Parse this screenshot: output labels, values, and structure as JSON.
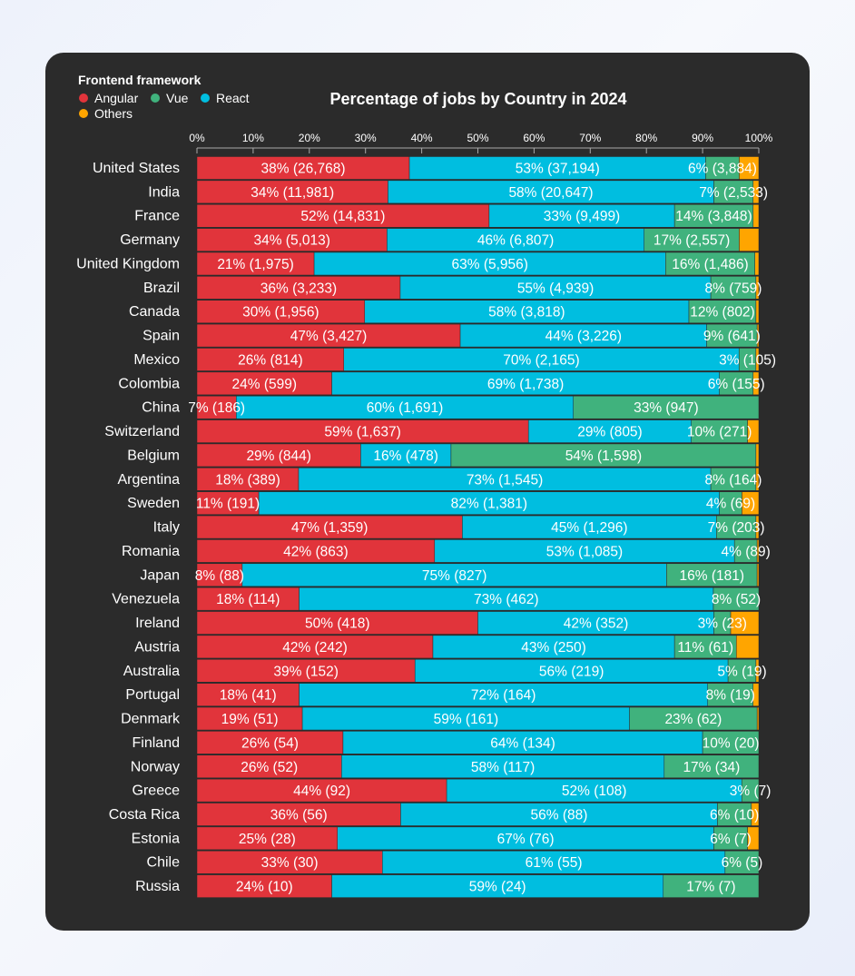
{
  "chart_data": {
    "type": "bar",
    "orientation": "horizontal",
    "stacked": "percent",
    "title": "Percentage of jobs by Country in 2024",
    "legend": {
      "title": "Frontend framework",
      "placement": "top-left"
    },
    "xlim": [
      0,
      100
    ],
    "x_ticks": [
      "0%",
      "10%",
      "20%",
      "30%",
      "40%",
      "50%",
      "60%",
      "70%",
      "80%",
      "90%",
      "100%"
    ],
    "grid": false,
    "colors": {
      "Angular": "#e1343b",
      "Vue": "#40b27d",
      "React": "#00bee0",
      "Others": "#ffa500"
    },
    "series_order": [
      "Angular",
      "React",
      "Vue",
      "Others"
    ],
    "legend_order": [
      "Angular",
      "Vue",
      "React",
      "Others"
    ],
    "columns": [
      "country",
      "angular_pct",
      "angular_jobs",
      "react_pct",
      "react_jobs",
      "vue_pct",
      "vue_jobs",
      "others_pct_estimated"
    ],
    "rows": [
      [
        "United States",
        38,
        26768,
        53,
        37194,
        6,
        3884,
        3.5
      ],
      [
        "India",
        34,
        11981,
        58,
        20647,
        7,
        2533,
        1
      ],
      [
        "France",
        52,
        14831,
        33,
        9499,
        14,
        3848,
        1
      ],
      [
        "Germany",
        34,
        5013,
        46,
        6807,
        17,
        2557,
        3.5
      ],
      [
        "United Kingdom",
        21,
        1975,
        63,
        5956,
        16,
        1486,
        0.7
      ],
      [
        "Brazil",
        36,
        3233,
        55,
        4939,
        8,
        759,
        0.5
      ],
      [
        "Canada",
        30,
        1956,
        58,
        3818,
        12,
        802,
        0.5
      ],
      [
        "Spain",
        47,
        3427,
        44,
        3226,
        9,
        641,
        0.3
      ],
      [
        "Mexico",
        26,
        814,
        70,
        2165,
        3,
        105,
        0.5
      ],
      [
        "Colombia",
        24,
        599,
        69,
        1738,
        6,
        155,
        1
      ],
      [
        "China",
        7,
        186,
        60,
        1691,
        33,
        947,
        0
      ],
      [
        "Switzerland",
        59,
        1637,
        29,
        805,
        10,
        271,
        2
      ],
      [
        "Belgium",
        29,
        844,
        16,
        478,
        54,
        1598,
        0.5
      ],
      [
        "Argentina",
        18,
        389,
        73,
        1545,
        8,
        164,
        0.5
      ],
      [
        "Sweden",
        11,
        191,
        82,
        1381,
        4,
        69,
        3
      ],
      [
        "Italy",
        47,
        1359,
        45,
        1296,
        7,
        203,
        0.5
      ],
      [
        "Romania",
        42,
        863,
        53,
        1085,
        4,
        89,
        0.3
      ],
      [
        "Japan",
        8,
        88,
        75,
        827,
        16,
        181,
        0.3
      ],
      [
        "Venezuela",
        18,
        114,
        73,
        462,
        8,
        52,
        0
      ],
      [
        "Ireland",
        50,
        418,
        42,
        352,
        3,
        23,
        5
      ],
      [
        "Austria",
        42,
        242,
        43,
        250,
        11,
        61,
        4
      ],
      [
        "Australia",
        39,
        152,
        56,
        219,
        5,
        19,
        0.5
      ],
      [
        "Portugal",
        18,
        41,
        72,
        164,
        8,
        19,
        1
      ],
      [
        "Denmark",
        19,
        51,
        59,
        161,
        23,
        62,
        0.3
      ],
      [
        "Finland",
        26,
        54,
        64,
        134,
        10,
        20,
        0
      ],
      [
        "Norway",
        26,
        52,
        58,
        117,
        17,
        34,
        0
      ],
      [
        "Greece",
        44,
        92,
        52,
        108,
        3,
        7,
        0
      ],
      [
        "Costa Rica",
        36,
        56,
        56,
        88,
        6,
        10,
        1.3
      ],
      [
        "Estonia",
        25,
        28,
        67,
        76,
        6,
        7,
        2
      ],
      [
        "Chile",
        33,
        30,
        61,
        55,
        6,
        5,
        0
      ],
      [
        "Russia",
        24,
        10,
        59,
        24,
        17,
        7,
        0
      ]
    ]
  }
}
